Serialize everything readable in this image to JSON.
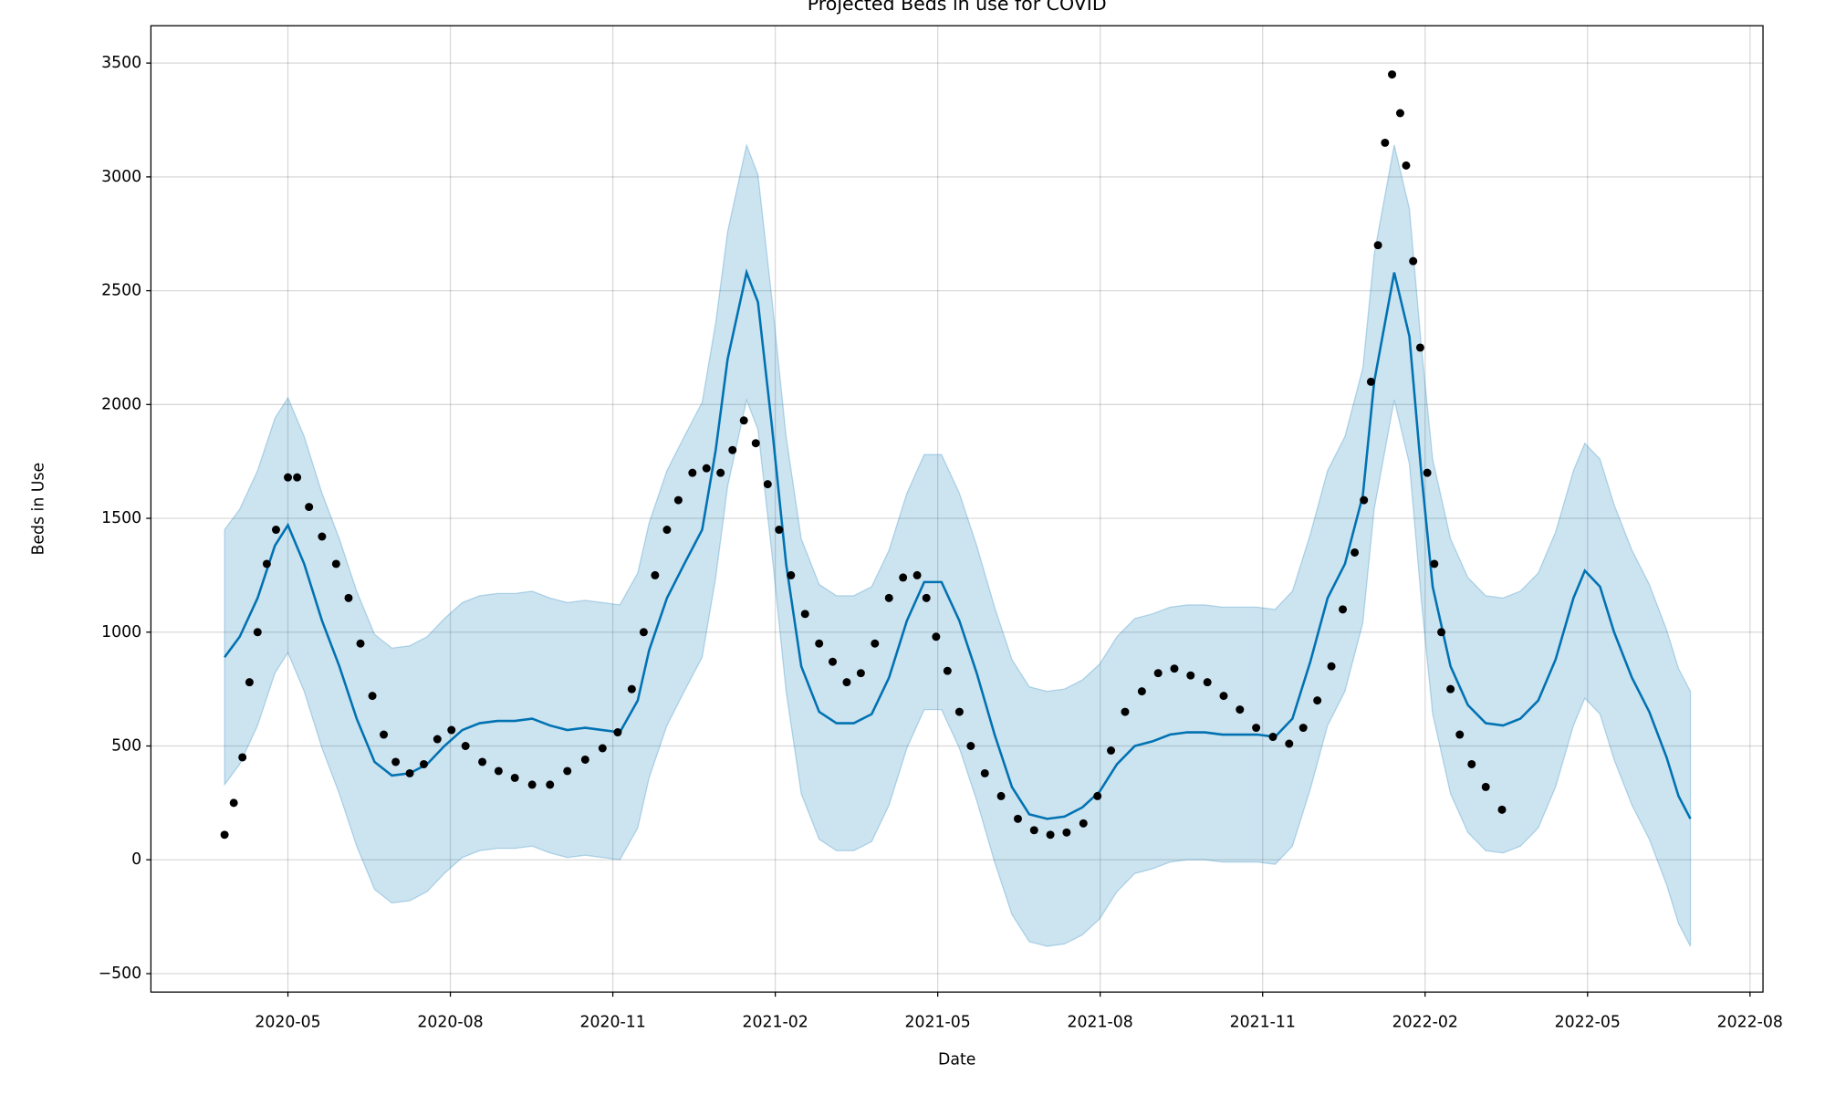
{
  "chart_data": {
    "type": "line",
    "title": "Projected Beds in use for COVID",
    "x_label": "Date",
    "y_label": "Beds in Use",
    "grid": true,
    "xlim": [
      2.47,
      32.24
    ],
    "ylim": [
      -581,
      3664
    ],
    "xticks": [
      {
        "value": 5,
        "label": "2020-05"
      },
      {
        "value": 8,
        "label": "2020-08"
      },
      {
        "value": 11,
        "label": "2020-11"
      },
      {
        "value": 14,
        "label": "2021-02"
      },
      {
        "value": 17,
        "label": "2021-05"
      },
      {
        "value": 20,
        "label": "2021-08"
      },
      {
        "value": 23,
        "label": "2021-11"
      },
      {
        "value": 26,
        "label": "2022-02"
      },
      {
        "value": 29,
        "label": "2022-05"
      },
      {
        "value": 32,
        "label": "2022-08"
      }
    ],
    "yticks": [
      {
        "value": -500,
        "label": "−500"
      },
      0,
      500,
      1000,
      1500,
      2000,
      2500,
      3000,
      3500
    ],
    "series": [
      {
        "type": "scatter",
        "color": "#000000",
        "x": [
          3.83,
          4.0,
          4.16,
          4.29,
          4.44,
          4.61,
          4.78,
          5.0,
          5.17,
          5.39,
          5.63,
          5.89,
          6.12,
          6.34,
          6.56,
          6.77,
          6.99,
          7.25,
          7.51,
          7.76,
          8.02,
          8.28,
          8.59,
          8.89,
          9.19,
          9.51,
          9.84,
          10.16,
          10.49,
          10.81,
          11.09,
          11.35,
          11.57,
          11.78,
          12.0,
          12.21,
          12.47,
          12.73,
          12.99,
          13.21,
          13.42,
          13.64,
          13.86,
          14.07,
          14.29,
          14.55,
          14.81,
          15.06,
          15.32,
          15.58,
          15.84,
          16.1,
          16.36,
          16.62,
          16.79,
          16.97,
          17.18,
          17.4,
          17.61,
          17.87,
          18.17,
          18.48,
          18.78,
          19.08,
          19.38,
          19.69,
          19.95,
          20.2,
          20.46,
          20.77,
          21.07,
          21.37,
          21.67,
          21.98,
          22.28,
          22.58,
          22.88,
          23.19,
          23.49,
          23.75,
          24.01,
          24.27,
          24.48,
          24.7,
          24.87,
          25.0,
          25.13,
          25.26,
          25.39,
          25.54,
          25.65,
          25.78,
          25.91,
          26.04,
          26.17,
          26.3,
          26.47,
          26.64,
          26.86,
          27.12,
          27.42
        ],
        "values": [
          110,
          250,
          450,
          780,
          1000,
          1300,
          1450,
          1680,
          1680,
          1550,
          1420,
          1300,
          1150,
          950,
          720,
          550,
          430,
          380,
          420,
          530,
          570,
          500,
          430,
          390,
          360,
          330,
          330,
          390,
          440,
          490,
          560,
          750,
          1000,
          1250,
          1450,
          1580,
          1700,
          1720,
          1700,
          1800,
          1930,
          1830,
          1650,
          1450,
          1250,
          1080,
          950,
          870,
          780,
          820,
          950,
          1150,
          1240,
          1250,
          1150,
          980,
          830,
          650,
          500,
          380,
          280,
          180,
          130,
          110,
          120,
          160,
          280,
          480,
          650,
          740,
          820,
          840,
          810,
          780,
          720,
          660,
          580,
          540,
          510,
          580,
          700,
          850,
          1100,
          1350,
          1580,
          2100,
          2700,
          3150,
          3450,
          3280,
          3050,
          2630,
          2250,
          1700,
          1300,
          1000,
          750,
          550,
          420,
          320,
          220
        ]
      },
      {
        "type": "line",
        "color": "#0072b2",
        "x": [
          3.83,
          4.11,
          4.44,
          4.76,
          5.0,
          5.3,
          5.63,
          5.95,
          6.27,
          6.6,
          6.92,
          7.25,
          7.57,
          7.89,
          8.22,
          8.54,
          8.87,
          9.19,
          9.51,
          9.84,
          10.16,
          10.49,
          10.81,
          11.13,
          11.46,
          11.67,
          12.0,
          12.32,
          12.65,
          12.9,
          13.12,
          13.47,
          13.68,
          13.94,
          14.2,
          14.48,
          14.81,
          15.13,
          15.45,
          15.78,
          16.1,
          16.43,
          16.75,
          17.07,
          17.4,
          17.72,
          18.05,
          18.37,
          18.69,
          19.02,
          19.34,
          19.67,
          19.99,
          20.31,
          20.64,
          20.96,
          21.29,
          21.61,
          21.93,
          22.26,
          22.58,
          22.9,
          23.23,
          23.55,
          23.88,
          24.2,
          24.52,
          24.85,
          25.06,
          25.43,
          25.71,
          25.93,
          26.14,
          26.47,
          26.79,
          27.12,
          27.44,
          27.76,
          28.09,
          28.41,
          28.74,
          28.95,
          29.23,
          29.49,
          29.82,
          30.14,
          30.46,
          30.68,
          30.9
        ],
        "values": [
          890,
          980,
          1150,
          1380,
          1470,
          1300,
          1050,
          850,
          620,
          430,
          370,
          380,
          420,
          500,
          570,
          600,
          610,
          610,
          620,
          590,
          570,
          580,
          570,
          560,
          700,
          920,
          1150,
          1300,
          1450,
          1800,
          2200,
          2580,
          2450,
          1900,
          1300,
          850,
          650,
          600,
          600,
          640,
          800,
          1050,
          1220,
          1220,
          1050,
          820,
          550,
          320,
          200,
          180,
          190,
          230,
          300,
          420,
          500,
          520,
          550,
          560,
          560,
          550,
          550,
          550,
          540,
          620,
          870,
          1150,
          1300,
          1600,
          2100,
          2580,
          2300,
          1700,
          1200,
          850,
          680,
          600,
          590,
          620,
          700,
          880,
          1150,
          1270,
          1200,
          1000,
          800,
          650,
          450,
          280,
          180
        ]
      },
      {
        "type": "band",
        "color": "#0072b2",
        "x": [
          3.83,
          4.11,
          4.44,
          4.76,
          5.0,
          5.3,
          5.63,
          5.95,
          6.27,
          6.6,
          6.92,
          7.25,
          7.57,
          7.89,
          8.22,
          8.54,
          8.87,
          9.19,
          9.51,
          9.84,
          10.16,
          10.49,
          10.81,
          11.13,
          11.46,
          11.67,
          12.0,
          12.32,
          12.65,
          12.9,
          13.12,
          13.47,
          13.68,
          13.94,
          14.2,
          14.48,
          14.81,
          15.13,
          15.45,
          15.78,
          16.1,
          16.43,
          16.75,
          17.07,
          17.4,
          17.72,
          18.05,
          18.37,
          18.69,
          19.02,
          19.34,
          19.67,
          19.99,
          20.31,
          20.64,
          20.96,
          21.29,
          21.61,
          21.93,
          22.26,
          22.58,
          22.9,
          23.23,
          23.55,
          23.88,
          24.2,
          24.52,
          24.85,
          25.06,
          25.43,
          25.71,
          25.93,
          26.14,
          26.47,
          26.79,
          27.12,
          27.44,
          27.76,
          28.09,
          28.41,
          28.74,
          28.95,
          29.23,
          29.49,
          29.82,
          30.14,
          30.46,
          30.68,
          30.9
        ],
        "lower": [
          330,
          420,
          590,
          820,
          910,
          740,
          490,
          290,
          60,
          -130,
          -190,
          -180,
          -140,
          -60,
          10,
          40,
          50,
          50,
          60,
          30,
          10,
          20,
          10,
          0,
          140,
          360,
          590,
          740,
          890,
          1240,
          1640,
          2020,
          1890,
          1340,
          740,
          290,
          90,
          40,
          40,
          80,
          240,
          490,
          660,
          660,
          490,
          260,
          -10,
          -240,
          -360,
          -380,
          -370,
          -330,
          -260,
          -140,
          -60,
          -40,
          -10,
          0,
          0,
          -10,
          -10,
          -10,
          -20,
          60,
          310,
          590,
          740,
          1040,
          1540,
          2020,
          1740,
          1140,
          640,
          290,
          120,
          40,
          30,
          60,
          140,
          320,
          590,
          710,
          640,
          440,
          240,
          90,
          -110,
          -280,
          -380
        ],
        "upper": [
          1450,
          1540,
          1710,
          1940,
          2030,
          1860,
          1610,
          1410,
          1180,
          990,
          930,
          940,
          980,
          1060,
          1130,
          1160,
          1170,
          1170,
          1180,
          1150,
          1130,
          1140,
          1130,
          1120,
          1260,
          1480,
          1710,
          1860,
          2010,
          2360,
          2760,
          3140,
          3010,
          2460,
          1860,
          1410,
          1210,
          1160,
          1160,
          1200,
          1360,
          1610,
          1780,
          1780,
          1610,
          1380,
          1110,
          880,
          760,
          740,
          750,
          790,
          860,
          980,
          1060,
          1080,
          1110,
          1120,
          1120,
          1110,
          1110,
          1110,
          1100,
          1180,
          1430,
          1710,
          1860,
          2160,
          2660,
          3140,
          2860,
          2260,
          1760,
          1410,
          1240,
          1160,
          1150,
          1180,
          1260,
          1440,
          1710,
          1830,
          1760,
          1560,
          1360,
          1210,
          1010,
          840,
          740
        ]
      }
    ]
  }
}
